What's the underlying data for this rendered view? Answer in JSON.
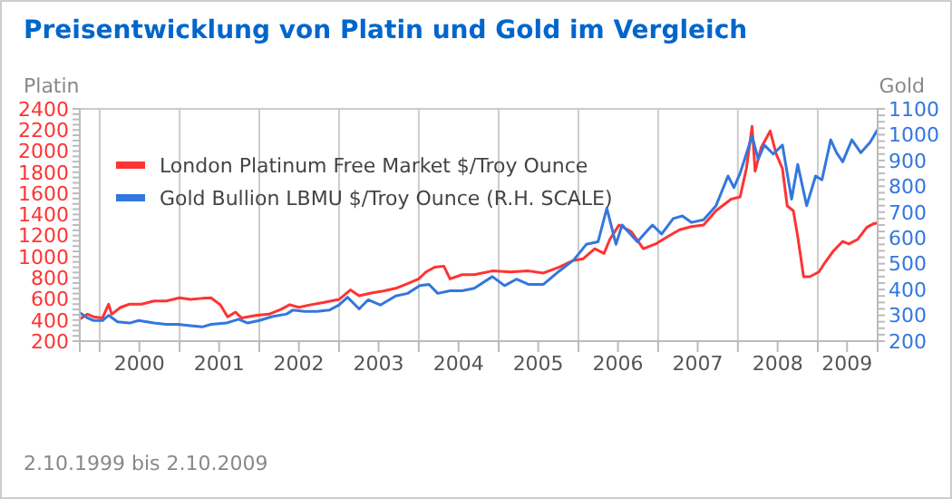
{
  "chart_data": {
    "type": "line",
    "title": "Preisentwicklung von Platin und Gold im Vergleich",
    "ylabel": "Platin",
    "y2label": "Gold",
    "annotations": [
      "2.10.1999 bis 2.10.2009"
    ],
    "xlim": [
      "1999-10-02",
      "2009-10-02"
    ],
    "xticks": [
      {
        "value": "1999-10-02",
        "label": null
      },
      {
        "value": "2000-01-01",
        "label": null
      },
      {
        "value": "2000-07-01",
        "label": "2000"
      },
      {
        "value": "2001-01-01",
        "label": null
      },
      {
        "value": "2001-07-01",
        "label": "2001"
      },
      {
        "value": "2002-01-01",
        "label": null
      },
      {
        "value": "2002-07-01",
        "label": "2002"
      },
      {
        "value": "2003-01-01",
        "label": null
      },
      {
        "value": "2003-07-01",
        "label": "2003"
      },
      {
        "value": "2004-01-01",
        "label": null
      },
      {
        "value": "2004-07-01",
        "label": "2004"
      },
      {
        "value": "2005-01-01",
        "label": null
      },
      {
        "value": "2005-07-01",
        "label": "2005"
      },
      {
        "value": "2006-01-01",
        "label": null
      },
      {
        "value": "2006-07-01",
        "label": "2006"
      },
      {
        "value": "2007-01-01",
        "label": null
      },
      {
        "value": "2007-07-01",
        "label": "2007"
      },
      {
        "value": "2008-01-01",
        "label": null
      },
      {
        "value": "2008-07-01",
        "label": "2008"
      },
      {
        "value": "2009-01-01",
        "label": null
      },
      {
        "value": "2009-05-15",
        "label": "2009"
      },
      {
        "value": "2009-10-02",
        "label": null
      }
    ],
    "ylim": [
      200,
      2400
    ],
    "yticks": [
      200,
      {
        "value": 250,
        "label": null
      },
      {
        "value": 300,
        "label": null
      },
      {
        "value": 350,
        "label": null
      },
      400,
      {
        "value": 450,
        "label": null
      },
      {
        "value": 500,
        "label": null
      },
      {
        "value": 550,
        "label": null
      },
      600,
      {
        "value": 650,
        "label": null
      },
      {
        "value": 700,
        "label": null
      },
      {
        "value": 750,
        "label": null
      },
      800,
      {
        "value": 850,
        "label": null
      },
      {
        "value": 900,
        "label": null
      },
      {
        "value": 950,
        "label": null
      },
      1000,
      {
        "value": 1050,
        "label": null
      },
      {
        "value": 1100,
        "label": null
      },
      {
        "value": 1150,
        "label": null
      },
      1200,
      {
        "value": 1250,
        "label": null
      },
      {
        "value": 1300,
        "label": null
      },
      {
        "value": 1350,
        "label": null
      },
      1400,
      {
        "value": 1450,
        "label": null
      },
      {
        "value": 1500,
        "label": null
      },
      {
        "value": 1550,
        "label": null
      },
      1600,
      {
        "value": 1650,
        "label": null
      },
      {
        "value": 1700,
        "label": null
      },
      {
        "value": 1750,
        "label": null
      },
      1800,
      {
        "value": 1850,
        "label": null
      },
      {
        "value": 1900,
        "label": null
      },
      {
        "value": 1950,
        "label": null
      },
      2000,
      {
        "value": 2050,
        "label": null
      },
      {
        "value": 2100,
        "label": null
      },
      {
        "value": 2150,
        "label": null
      },
      2200,
      {
        "value": 2250,
        "label": null
      },
      {
        "value": 2300,
        "label": null
      },
      {
        "value": 2350,
        "label": null
      },
      2400
    ],
    "y2lim": [
      200,
      1100
    ],
    "y2ticks": [
      200,
      {
        "value": 225,
        "label": null
      },
      {
        "value": 250,
        "label": null
      },
      {
        "value": 275,
        "label": null
      },
      300,
      {
        "value": 325,
        "label": null
      },
      {
        "value": 350,
        "label": null
      },
      {
        "value": 375,
        "label": null
      },
      400,
      {
        "value": 425,
        "label": null
      },
      {
        "value": 450,
        "label": null
      },
      {
        "value": 475,
        "label": null
      },
      500,
      {
        "value": 525,
        "label": null
      },
      {
        "value": 550,
        "label": null
      },
      {
        "value": 575,
        "label": null
      },
      600,
      {
        "value": 625,
        "label": null
      },
      {
        "value": 650,
        "label": null
      },
      {
        "value": 675,
        "label": null
      },
      700,
      {
        "value": 725,
        "label": null
      },
      {
        "value": 750,
        "label": null
      },
      {
        "value": 775,
        "label": null
      },
      800,
      {
        "value": 825,
        "label": null
      },
      {
        "value": 850,
        "label": null
      },
      {
        "value": 875,
        "label": null
      },
      900,
      {
        "value": 925,
        "label": null
      },
      {
        "value": 950,
        "label": null
      },
      {
        "value": 975,
        "label": null
      },
      1000,
      {
        "value": 1025,
        "label": null
      },
      {
        "value": 1050,
        "label": null
      },
      {
        "value": 1075,
        "label": null
      },
      1100
    ],
    "grid": "x",
    "legend": "top left",
    "marker": "none",
    "line_style": "solid",
    "series": [
      {
        "name": "London Platinum Free Market $/Troy Ounce",
        "color": "#ff3333",
        "axis": "y",
        "x": [
          "1999-10-03",
          "1999-11-06",
          "1999-12-04",
          "2000-01-14",
          "2000-02-11",
          "2000-02-25",
          "2000-04-06",
          "2000-05-17",
          "2000-07-11",
          "2000-09-06",
          "2000-11-01",
          "2001-01-01",
          "2001-02-20",
          "2001-04-14",
          "2001-05-25",
          "2001-07-06",
          "2001-08-09",
          "2001-09-14",
          "2001-10-11",
          "2001-12-20",
          "2002-02-14",
          "2002-04-09",
          "2002-05-20",
          "2002-07-01",
          "2002-08-25",
          "2002-10-20",
          "2003-01-01",
          "2003-02-22",
          "2003-04-03",
          "2003-05-28",
          "2003-07-23",
          "2003-09-17",
          "2003-11-11",
          "2004-01-01",
          "2004-02-03",
          "2004-03-14",
          "2004-04-25",
          "2004-05-23",
          "2004-07-17",
          "2004-09-11",
          "2004-12-03",
          "2005-02-25",
          "2005-05-17",
          "2005-07-25",
          "2005-10-03",
          "2005-12-11",
          "2006-01-23",
          "2006-03-17",
          "2006-04-28",
          "2006-05-25",
          "2006-07-06",
          "2006-09-01",
          "2006-10-25",
          "2006-12-20",
          "2007-02-14",
          "2007-04-09",
          "2007-06-03",
          "2007-07-28",
          "2007-09-23",
          "2007-12-01",
          "2008-01-11",
          "2008-02-09",
          "2008-03-06",
          "2008-03-20",
          "2008-04-17",
          "2008-05-28",
          "2008-06-25",
          "2008-07-23",
          "2008-08-14",
          "2008-09-11",
          "2008-10-01",
          "2008-10-28",
          "2008-11-25",
          "2009-01-06",
          "2009-02-03",
          "2009-03-14",
          "2009-04-25",
          "2009-05-23",
          "2009-07-03",
          "2009-08-14",
          "2009-09-11",
          "2009-10-02"
        ],
        "values": [
          410,
          455,
          430,
          420,
          550,
          455,
          520,
          550,
          550,
          580,
          580,
          610,
          595,
          605,
          610,
          545,
          430,
          475,
          420,
          445,
          455,
          500,
          545,
          520,
          545,
          565,
          595,
          685,
          630,
          655,
          675,
          700,
          745,
          790,
          855,
          900,
          910,
          790,
          830,
          830,
          865,
          855,
          865,
          845,
          900,
          965,
          980,
          1075,
          1030,
          1165,
          1300,
          1235,
          1075,
          1120,
          1190,
          1255,
          1285,
          1300,
          1435,
          1545,
          1565,
          1835,
          2235,
          1810,
          2035,
          2190,
          1970,
          1835,
          1480,
          1435,
          1190,
          810,
          810,
          855,
          945,
          1055,
          1145,
          1120,
          1165,
          1280,
          1310,
          1320
        ]
      },
      {
        "name": "Gold Bullion LBMU $/Troy Ounce (R.H. SCALE)",
        "color": "#3377dd",
        "axis": "y2",
        "x": [
          "1999-10-03",
          "1999-11-06",
          "1999-12-04",
          "2000-01-14",
          "2000-02-11",
          "2000-03-23",
          "2000-05-17",
          "2000-06-28",
          "2000-09-06",
          "2000-11-01",
          "2000-12-25",
          "2001-02-20",
          "2001-04-14",
          "2001-05-25",
          "2001-08-03",
          "2001-09-28",
          "2001-11-09",
          "2002-01-01",
          "2002-02-28",
          "2002-05-06",
          "2002-06-03",
          "2002-07-28",
          "2002-09-23",
          "2002-11-17",
          "2003-01-01",
          "2003-02-09",
          "2003-04-03",
          "2003-05-14",
          "2003-07-09",
          "2003-09-17",
          "2003-11-11",
          "2004-01-06",
          "2004-02-17",
          "2004-03-28",
          "2004-05-23",
          "2004-07-17",
          "2004-09-11",
          "2004-12-03",
          "2005-01-28",
          "2005-03-23",
          "2005-05-17",
          "2005-07-25",
          "2005-10-03",
          "2005-12-11",
          "2006-02-06",
          "2006-04-01",
          "2006-05-11",
          "2006-06-22",
          "2006-07-20",
          "2006-09-28",
          "2006-11-09",
          "2006-12-06",
          "2007-01-17",
          "2007-03-11",
          "2007-04-22",
          "2007-06-03",
          "2007-07-28",
          "2007-09-23",
          "2007-11-17",
          "2007-12-14",
          "2008-01-11",
          "2008-03-06",
          "2008-04-03",
          "2008-05-01",
          "2008-06-11",
          "2008-07-23",
          "2008-09-03",
          "2008-10-01",
          "2008-11-11",
          "2008-12-22",
          "2009-01-20",
          "2009-03-01",
          "2009-03-28",
          "2009-04-25",
          "2009-06-06",
          "2009-07-17",
          "2009-08-28",
          "2009-10-02"
        ],
        "values": [
          310,
          290,
          280,
          280,
          300,
          275,
          270,
          280,
          270,
          265,
          265,
          260,
          255,
          265,
          270,
          285,
          270,
          280,
          295,
          305,
          320,
          315,
          315,
          320,
          340,
          370,
          325,
          360,
          340,
          375,
          385,
          415,
          420,
          385,
          395,
          395,
          405,
          450,
          415,
          440,
          420,
          420,
          470,
          515,
          575,
          585,
          715,
          575,
          650,
          585,
          625,
          650,
          615,
          675,
          685,
          660,
          670,
          725,
          840,
          795,
          850,
          995,
          905,
          960,
          925,
          960,
          750,
          885,
          725,
          840,
          825,
          980,
          930,
          895,
          980,
          930,
          970,
          1020
        ]
      }
    ]
  }
}
